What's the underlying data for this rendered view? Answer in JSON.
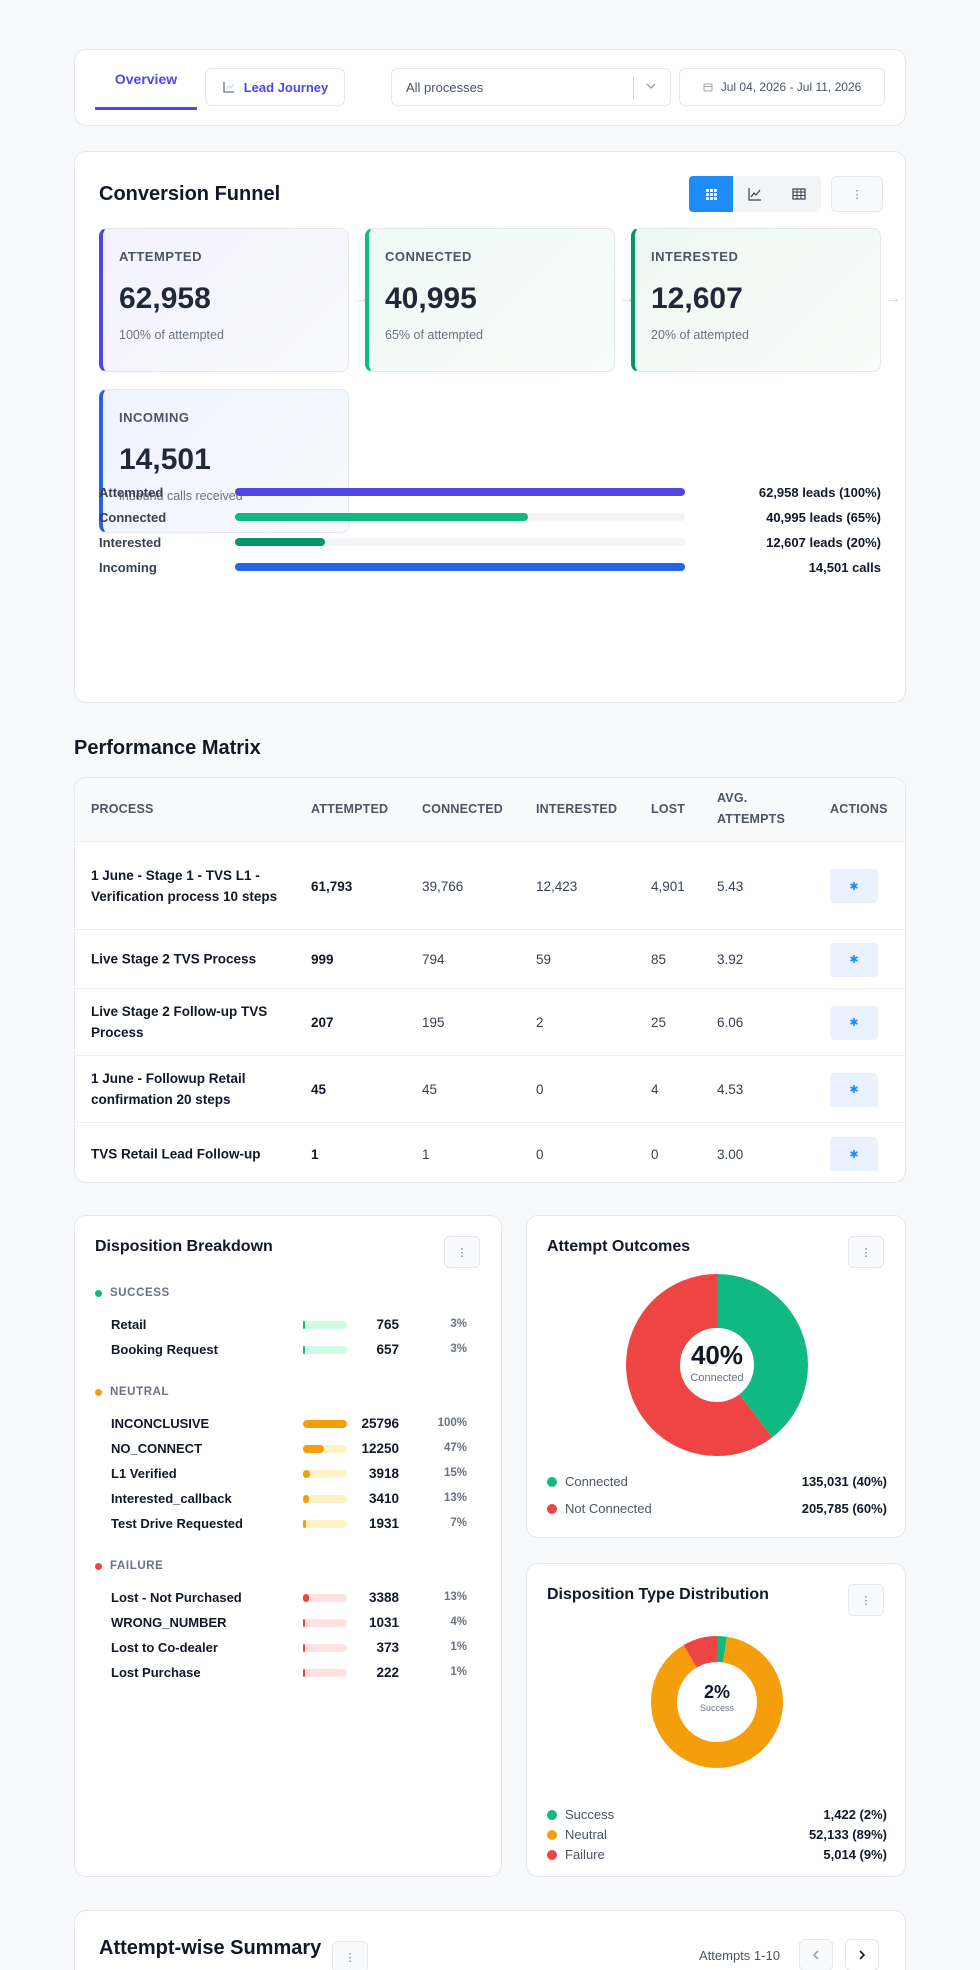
{
  "topbar": {
    "tabs": [
      "Overview",
      "Lead Journey"
    ],
    "process_select": "All processes",
    "date_range": "Jul 04, 2026 - Jul 11, 2026"
  },
  "funnel": {
    "title": "Conversion Funnel",
    "stages": [
      {
        "label": "ATTEMPTED",
        "value": "62,958",
        "sub": "100% of attempted",
        "color": "#4f46e5"
      },
      {
        "label": "CONNECTED",
        "value": "40,995",
        "sub": "65% of attempted",
        "color": "#10b981"
      },
      {
        "label": "INTERESTED",
        "value": "12,607",
        "sub": "20% of attempted",
        "color": "#059669"
      },
      {
        "label": "INCOMING",
        "value": "14,501",
        "sub": "inbound calls received",
        "color": "#2563eb"
      }
    ],
    "bars": [
      {
        "name": "Attempted",
        "fraction": 1.0,
        "label": "62,958 leads (100%)",
        "color": "#4f46e5"
      },
      {
        "name": "Connected",
        "fraction": 0.65,
        "label": "40,995 leads (65%)",
        "color": "#10b981"
      },
      {
        "name": "Interested",
        "fraction": 0.2,
        "label": "12,607 leads (20%)",
        "color": "#059669"
      },
      {
        "name": "Incoming",
        "fraction": 1.0,
        "label": "14,501 calls",
        "color": "#2563eb"
      }
    ]
  },
  "matrix": {
    "title": "Performance Matrix",
    "headers": [
      "PROCESS",
      "ATTEMPTED",
      "CONNECTED",
      "INTERESTED",
      "LOST",
      "AVG.\nATTEMPTS",
      "ACTIONS"
    ],
    "rows": [
      [
        "1 June - Stage 1 - TVS L1 - Verification process 10 steps",
        "61,793",
        "39,766",
        "12,423",
        "4,901",
        "5.43"
      ],
      [
        "Live Stage 2 TVS Process",
        "999",
        "794",
        "59",
        "85",
        "3.92"
      ],
      [
        "Live Stage 2 Follow-up TVS Process",
        "207",
        "195",
        "2",
        "25",
        "6.06"
      ],
      [
        "1 June - Followup Retail confirmation 20 steps",
        "45",
        "45",
        "0",
        "4",
        "4.53"
      ],
      [
        "TVS Retail Lead Follow-up",
        "1",
        "1",
        "0",
        "0",
        "3.00"
      ]
    ]
  },
  "disposition": {
    "title": "Disposition Breakdown",
    "groups": [
      {
        "name": "SUCCESS",
        "color": "#10b981",
        "track": "#d1fae5",
        "items": [
          {
            "name": "Retail",
            "count": "765",
            "pct": "3%",
            "fraction": 0.03
          },
          {
            "name": "Booking Request",
            "count": "657",
            "pct": "3%",
            "fraction": 0.03
          }
        ]
      },
      {
        "name": "NEUTRAL",
        "color": "#f59e0b",
        "track": "#fef3c7",
        "items": [
          {
            "name": "INCONCLUSIVE",
            "count": "25796",
            "pct": "100%",
            "fraction": 1.0
          },
          {
            "name": "NO_CONNECT",
            "count": "12250",
            "pct": "47%",
            "fraction": 0.47
          },
          {
            "name": "L1 Verified",
            "count": "3918",
            "pct": "15%",
            "fraction": 0.15
          },
          {
            "name": "Interested_callback",
            "count": "3410",
            "pct": "13%",
            "fraction": 0.13
          },
          {
            "name": "Test Drive Requested",
            "count": "1931",
            "pct": "7%",
            "fraction": 0.07
          }
        ]
      },
      {
        "name": "FAILURE",
        "color": "#ef4444",
        "track": "#fee2e2",
        "items": [
          {
            "name": "Lost - Not Purchased",
            "count": "3388",
            "pct": "13%",
            "fraction": 0.13
          },
          {
            "name": "WRONG_NUMBER",
            "count": "1031",
            "pct": "4%",
            "fraction": 0.04
          },
          {
            "name": "Lost to Co-dealer",
            "count": "373",
            "pct": "1%",
            "fraction": 0.01
          },
          {
            "name": "Lost Purchase",
            "count": "222",
            "pct": "1%",
            "fraction": 0.01
          }
        ]
      }
    ]
  },
  "attempt_outcomes": {
    "title": "Attempt Outcomes",
    "center_value": "40%",
    "center_label": "Connected",
    "legend": [
      {
        "name": "Connected",
        "value": "135,031 (40%)",
        "color": "#10b981"
      },
      {
        "name": "Not Connected",
        "value": "205,785 (60%)",
        "color": "#ef4444"
      }
    ]
  },
  "type_distribution": {
    "title": "Disposition Type Distribution",
    "center_value": "2%",
    "center_label": "Success",
    "legend": [
      {
        "name": "Success",
        "value": "1,422 (2%)",
        "color": "#10b981"
      },
      {
        "name": "Neutral",
        "value": "52,133 (89%)",
        "color": "#f59e0b"
      },
      {
        "name": "Failure",
        "value": "5,014 (9%)",
        "color": "#ef4444"
      }
    ]
  },
  "chart_data": [
    {
      "type": "pie",
      "title": "Attempt Outcomes",
      "categories": [
        "Connected",
        "Not Connected"
      ],
      "values": [
        135031,
        205785
      ]
    },
    {
      "type": "pie",
      "title": "Disposition Type Distribution",
      "categories": [
        "Success",
        "Neutral",
        "Failure"
      ],
      "values": [
        1422,
        52133,
        5014
      ]
    }
  ],
  "summary": {
    "title": "Attempt-wise Summary",
    "pager_label": "Attempts 1-10"
  }
}
